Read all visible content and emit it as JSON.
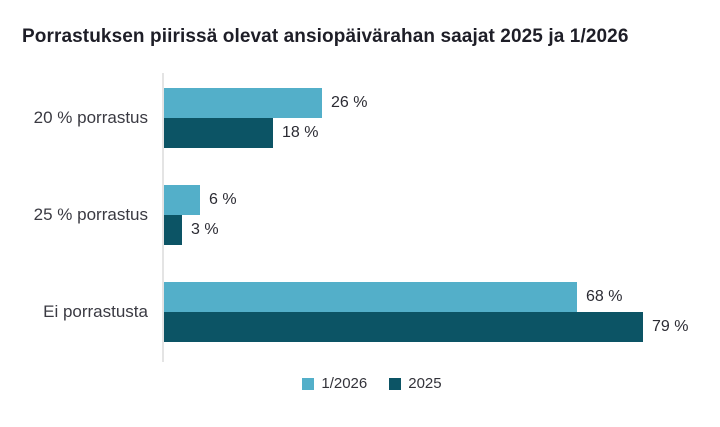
{
  "title": "Porrastuksen piirissä olevat ansiopäivärahan saajat 2025 ja 1/2026",
  "colors": {
    "series_1_2026": "#53AFC9",
    "series_2025": "#0C5465",
    "axis_line": "#E4E4E4",
    "title_text": "#1E1E27",
    "label_text": "#3A3A42",
    "value_text": "#2B2B33",
    "background": "#FFFFFF"
  },
  "legend": {
    "position": "bottom",
    "items": [
      {
        "label": "1/2026",
        "color": "#53AFC9"
      },
      {
        "label": "2025",
        "color": "#0C5465"
      }
    ]
  },
  "chart_data": {
    "type": "bar",
    "orientation": "horizontal",
    "title": "Porrastuksen piirissä olevat ansiopäivärahan saajat 2025 ja 1/2026",
    "categories": [
      "20 % porrastus",
      "25 % porrastus",
      "Ei porrastusta"
    ],
    "series": [
      {
        "name": "1/2026",
        "color": "#53AFC9",
        "values": [
          26,
          6,
          68
        ],
        "labels": [
          "26 %",
          "6 %",
          "68 %"
        ]
      },
      {
        "name": "2025",
        "color": "#0C5465",
        "values": [
          18,
          3,
          79
        ],
        "labels": [
          "18 %",
          "3 %",
          "79 %"
        ]
      }
    ],
    "unit": "%",
    "xlim": [
      0,
      90
    ],
    "grid": false,
    "value_labels": true,
    "legend_position": "bottom"
  }
}
